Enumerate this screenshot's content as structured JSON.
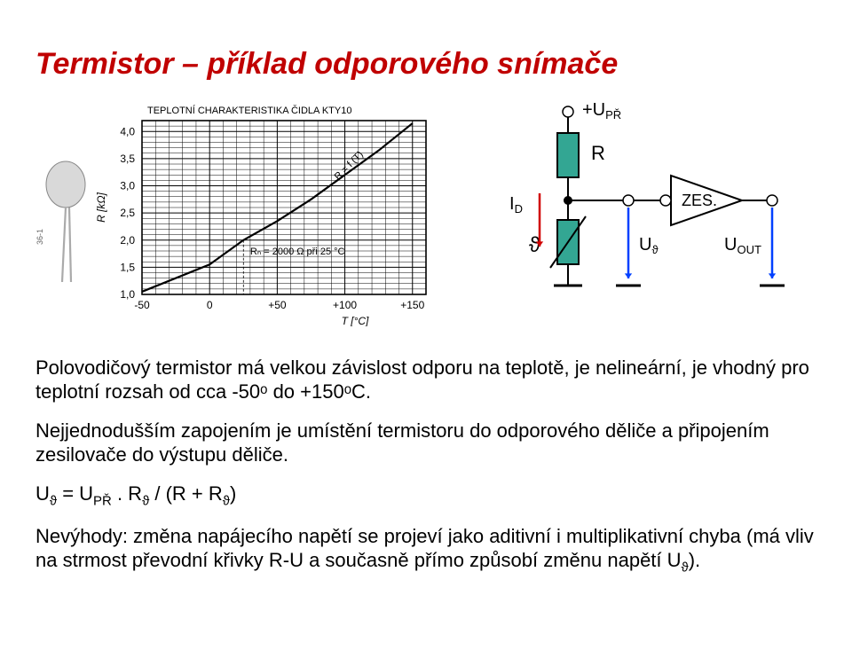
{
  "title": {
    "text": "Termistor – příklad odporového snímače",
    "color": "#c00000"
  },
  "chart": {
    "type": "line",
    "title": "TEPLOTNÍ CHARAKTERISTIKA ČIDLA KTY10",
    "title_fontsize": 11,
    "xlabel": "T [°C]",
    "ylabel": "R [kΩ]",
    "label_fontsize": 12,
    "xlim": [
      -50,
      160
    ],
    "ylim": [
      1.0,
      4.2
    ],
    "xticks": [
      -50,
      0,
      50,
      100,
      150
    ],
    "xtick_labels": [
      "-50",
      "0",
      "+50",
      "+100",
      "+150"
    ],
    "yticks": [
      1.0,
      1.5,
      2.0,
      2.5,
      3.0,
      3.5,
      4.0
    ],
    "ytick_labels": [
      "1,0",
      "1,5",
      "2,0",
      "2,5",
      "3,0",
      "3,5",
      "4,0"
    ],
    "curve": [
      [
        -50,
        1.05
      ],
      [
        0,
        1.55
      ],
      [
        25,
        2.0
      ],
      [
        50,
        2.35
      ],
      [
        75,
        2.75
      ],
      [
        100,
        3.2
      ],
      [
        125,
        3.65
      ],
      [
        150,
        4.15
      ]
    ],
    "curve_width": 2.2,
    "annotation_Rn": "Rₙ = 2000 Ω při 25 °C",
    "annotation_Rfn": "R = f (T)",
    "grid_minor": 5,
    "grid_color": "#000000",
    "background_color": "#ffffff",
    "thermistor_image_label": "36-1"
  },
  "circuit": {
    "supply_label": "+U",
    "supply_sub": "PŘ",
    "R_label": "R",
    "ID_label": "I",
    "ID_sub": "D",
    "theta_label": "ϑ",
    "U_theta_label": "U",
    "U_theta_sub": "ϑ",
    "amp_label": "ZES.",
    "Uout_label": "U",
    "Uout_sub": "OUT",
    "resistor_color": "#33a693",
    "arrow_color_red": "#d00000",
    "arrow_color_blue": "#0040ff",
    "wire_color": "#000000"
  },
  "paragraphs": {
    "p1": "Polovodičový termistor má velkou závislost odporu na teplotě, je nelineární, je vhodný pro teplotní rozsah od cca -50ᵒ do +150ᵒC.",
    "p2": "Nejjednodušším zapojením je umístění termistoru do odporového děliče a připojením zesilovače do výstupu děliče.",
    "p3_html": "U<sub>ϑ</sub> = U<sub>PŘ</sub> . R<sub>ϑ</sub> / (R + R<sub>ϑ</sub>)",
    "p4_html": "Nevýhody: změna napájecího napětí se projeví jako aditivní i multiplikativní chyba (má vliv na strmost převodní křivky R-U a současně přímo způsobí změnu napětí U<sub>ϑ</sub>)."
  }
}
